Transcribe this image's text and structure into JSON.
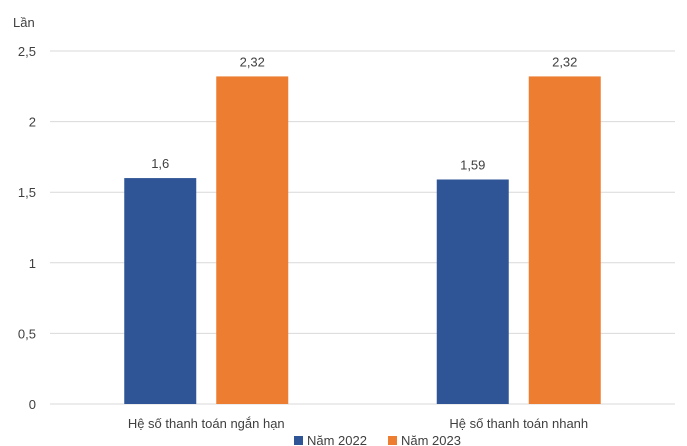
{
  "chart_data": {
    "type": "bar",
    "title": "",
    "ylabel": "Lần",
    "xlabel": "",
    "categories": [
      "Hệ số thanh toán ngắn hạn",
      "Hệ số thanh toán nhanh"
    ],
    "series": [
      {
        "name": "Năm 2022",
        "values": [
          1.6,
          1.59
        ],
        "labels": [
          "1,6",
          "1,59"
        ],
        "color": "#2f5597"
      },
      {
        "name": "Năm 2023",
        "values": [
          2.32,
          2.32
        ],
        "labels": [
          "2,32",
          "2,32"
        ],
        "color": "#ed7d31"
      }
    ],
    "ylim": [
      0,
      2.5
    ],
    "yticks": [
      0,
      0.5,
      1,
      1.5,
      2,
      2.5
    ],
    "ytick_labels": [
      "0",
      "0,5",
      "1",
      "1,5",
      "2",
      "2,5"
    ],
    "grid": true,
    "legend_position": "bottom"
  }
}
